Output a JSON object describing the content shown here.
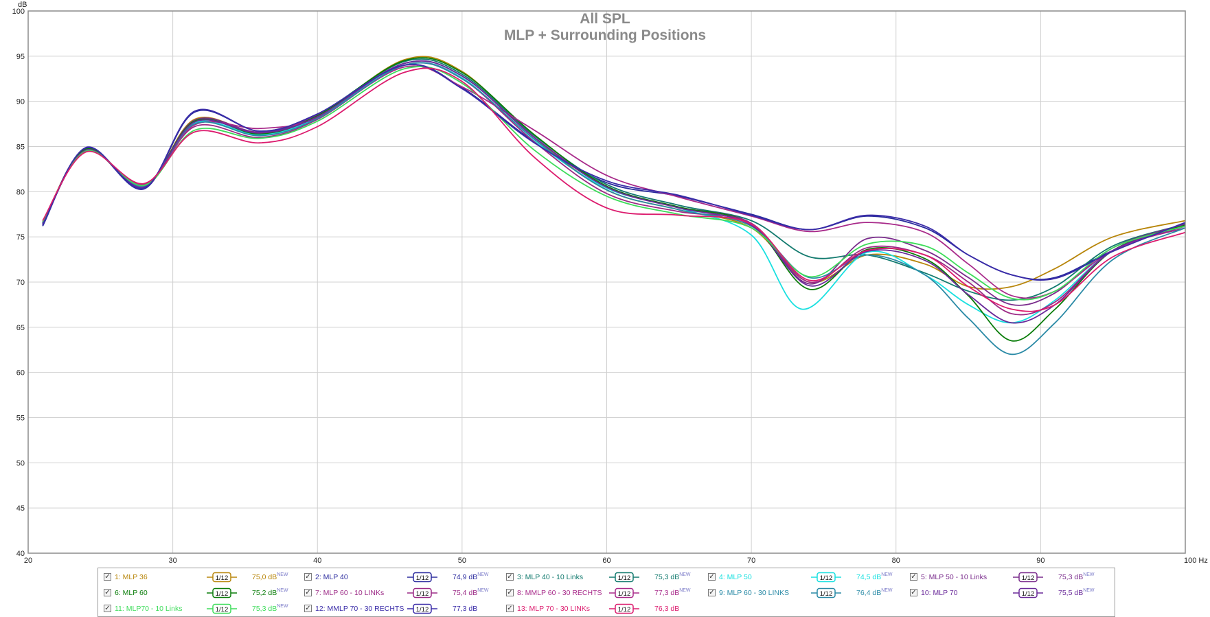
{
  "titles": {
    "line1": "All SPL",
    "line2": "MLP + Surrounding Positions"
  },
  "chart_data": {
    "type": "line",
    "title": "All SPL",
    "subtitle": "MLP + Surrounding Positions",
    "ylabel": "dB",
    "xlabel": "Hz",
    "xlim": [
      20,
      100
    ],
    "ylim": [
      40,
      100
    ],
    "xticks": [
      "20",
      "30",
      "40",
      "50",
      "60",
      "70",
      "80",
      "90",
      "100 Hz"
    ],
    "yticks": [
      "100",
      "95",
      "90",
      "85",
      "80",
      "75",
      "70",
      "65",
      "60",
      "55",
      "50",
      "45",
      "40"
    ],
    "grid": true,
    "legend_position": "bottom",
    "series": [
      {
        "name": "1: MLP 36",
        "color": "#b8860b",
        "level": "75,0 dB",
        "x": [
          21,
          24,
          28,
          31.5,
          36,
          40,
          46,
          50,
          55,
          60,
          65,
          70,
          74,
          78,
          82,
          85,
          88,
          91,
          95,
          100
        ],
        "y": [
          76.5,
          84.8,
          80.5,
          88.0,
          86.5,
          88.3,
          94.6,
          93.3,
          86.0,
          80.2,
          78.0,
          76.0,
          70.0,
          73.0,
          72.0,
          69.5,
          69.5,
          71.5,
          75.0,
          76.8
        ]
      },
      {
        "name": "2: MLP 40",
        "color": "#2b2b9e",
        "level": "74,9 dB",
        "x": [
          21,
          24,
          28,
          31.5,
          36,
          40,
          46,
          50,
          55,
          60,
          65,
          70,
          74,
          78,
          82,
          85,
          88,
          91,
          95,
          100
        ],
        "y": [
          76.2,
          84.8,
          80.3,
          88.8,
          86.7,
          88.6,
          94.0,
          91.5,
          85.5,
          81.0,
          79.5,
          77.5,
          75.8,
          77.3,
          76.0,
          73.0,
          70.8,
          70.5,
          73.5,
          76.5
        ]
      },
      {
        "name": "3: MLP 40 - 10 Links",
        "color": "#127a6e",
        "level": "75,3 dB",
        "x": [
          21,
          24,
          28,
          31.5,
          36,
          40,
          46,
          50,
          55,
          60,
          65,
          70,
          74,
          78,
          82,
          85,
          88,
          91,
          95,
          100
        ],
        "y": [
          76.5,
          84.7,
          80.6,
          87.8,
          86.5,
          88.5,
          94.4,
          93.0,
          86.2,
          80.8,
          78.5,
          76.8,
          72.8,
          73.0,
          71.0,
          69.0,
          68.0,
          69.5,
          74.0,
          76.4
        ]
      },
      {
        "name": "4: MLP 50",
        "color": "#19e0e0",
        "level": "74,5 dB",
        "x": [
          21,
          24,
          28,
          31.5,
          36,
          40,
          46,
          50,
          55,
          60,
          65,
          70,
          73.5,
          78,
          82,
          85,
          88,
          91,
          95,
          100
        ],
        "y": [
          76.6,
          84.6,
          80.7,
          87.6,
          86.3,
          88.2,
          94.0,
          92.6,
          85.6,
          80.4,
          78.2,
          75.2,
          67.0,
          73.3,
          70.8,
          67.5,
          65.5,
          68.0,
          73.5,
          76.2
        ]
      },
      {
        "name": "5: MLP 50 - 10 Links",
        "color": "#7a2c8c",
        "level": "75,3 dB",
        "x": [
          21,
          24,
          28,
          31.5,
          36,
          40,
          46,
          50,
          55,
          60,
          65,
          70,
          74,
          78,
          82,
          85,
          88,
          91,
          95,
          100
        ],
        "y": [
          76.4,
          84.7,
          80.5,
          87.9,
          86.6,
          88.5,
          94.2,
          92.8,
          86.0,
          80.6,
          78.3,
          76.5,
          69.8,
          74.8,
          73.5,
          70.5,
          67.5,
          68.8,
          73.8,
          76.4
        ]
      },
      {
        "name": "6: MLP 60",
        "color": "#0a7d0a",
        "level": "75,2 dB",
        "x": [
          21,
          24,
          28,
          31.5,
          36,
          40,
          46,
          50,
          55,
          60,
          65,
          70,
          74,
          78,
          82,
          85,
          88,
          91,
          95,
          100
        ],
        "y": [
          76.5,
          84.7,
          80.5,
          87.8,
          86.4,
          88.4,
          94.5,
          93.2,
          86.3,
          80.6,
          78.3,
          76.4,
          69.2,
          73.6,
          72.6,
          68.5,
          63.5,
          67.0,
          73.5,
          76.3
        ]
      },
      {
        "name": "7: MLP 60 - 10 LINKs",
        "color": "#9c2a86",
        "level": "75,4 dB",
        "x": [
          21,
          24,
          28,
          31.5,
          36,
          40,
          46,
          50,
          55,
          60,
          65,
          70,
          74,
          78,
          82,
          85,
          88,
          91,
          95,
          100
        ],
        "y": [
          76.5,
          84.6,
          80.6,
          87.2,
          86.0,
          88.0,
          94.0,
          92.5,
          85.5,
          79.8,
          77.8,
          76.5,
          70.0,
          73.8,
          73.0,
          70.0,
          66.5,
          67.8,
          73.5,
          76.0
        ]
      },
      {
        "name": "8: MMLP 60 - 30 RECHTS",
        "color": "#a82a8a",
        "level": "77,3 dB",
        "x": [
          21,
          24,
          28,
          31.5,
          36,
          40,
          46,
          50,
          55,
          60,
          65,
          70,
          74,
          78,
          82,
          85,
          88,
          91,
          95,
          100
        ],
        "y": [
          76.6,
          84.5,
          80.8,
          87.4,
          87.0,
          88.2,
          93.8,
          91.6,
          86.8,
          81.8,
          79.4,
          77.3,
          75.6,
          76.6,
          75.5,
          72.0,
          68.5,
          69.0,
          73.5,
          76.2
        ]
      },
      {
        "name": "9: MLP 60 - 30 LINKS",
        "color": "#2a8aa6",
        "level": "76,4 dB",
        "x": [
          21,
          24,
          28,
          31.5,
          36,
          40,
          46,
          50,
          55,
          60,
          65,
          70,
          74,
          78,
          82,
          85,
          88,
          91,
          95,
          100
        ],
        "y": [
          76.5,
          84.6,
          80.6,
          87.5,
          86.2,
          88.1,
          94.0,
          92.5,
          85.8,
          80.2,
          78.0,
          76.2,
          70.5,
          73.0,
          70.8,
          66.0,
          62.0,
          65.5,
          72.5,
          76.0
        ]
      },
      {
        "name": "10: MLP 70",
        "color": "#6a2a9a",
        "level": "75,5 dB",
        "x": [
          21,
          24,
          28,
          31.5,
          36,
          40,
          46,
          50,
          55,
          60,
          65,
          70,
          74,
          78,
          82,
          85,
          88,
          91,
          95,
          100
        ],
        "y": [
          76.4,
          84.6,
          80.5,
          87.7,
          86.5,
          88.3,
          94.2,
          92.8,
          86.0,
          80.5,
          78.2,
          76.3,
          69.6,
          73.4,
          72.4,
          68.6,
          65.5,
          67.5,
          73.5,
          76.2
        ]
      },
      {
        "name": "11: MLP70 - 10 Links",
        "color": "#3ddc5a",
        "level": "75,3 dB",
        "x": [
          21,
          24,
          28,
          31.5,
          36,
          40,
          46,
          50,
          55,
          60,
          65,
          70,
          74,
          78,
          82,
          85,
          88,
          91,
          95,
          100
        ],
        "y": [
          76.7,
          84.5,
          80.7,
          86.8,
          85.9,
          87.8,
          93.6,
          92.0,
          84.6,
          79.5,
          77.5,
          76.0,
          70.6,
          74.2,
          74.0,
          71.0,
          68.2,
          69.0,
          73.8,
          76.2
        ]
      },
      {
        "name": "12: MMLP 70 - 30 RECHTS",
        "color": "#3a2ca8",
        "level": "77,3 dB",
        "x": [
          21,
          24,
          28,
          31.5,
          36,
          40,
          46,
          50,
          55,
          60,
          65,
          70,
          74,
          78,
          82,
          85,
          88,
          91,
          95,
          100
        ],
        "y": [
          76.3,
          84.9,
          80.4,
          88.9,
          86.7,
          88.6,
          94.0,
          91.4,
          85.4,
          81.2,
          79.6,
          77.4,
          75.8,
          77.4,
          76.2,
          73.0,
          70.8,
          70.4,
          73.4,
          76.6
        ]
      },
      {
        "name": "13: MLP 70 - 30 LINKs",
        "color": "#dc1c6e",
        "level": "76,3 dB",
        "x": [
          21,
          24,
          28,
          31.5,
          36,
          40,
          46,
          50,
          55,
          60,
          65,
          70,
          74,
          78,
          82,
          85,
          88,
          91,
          95,
          100
        ],
        "y": [
          76.8,
          84.4,
          80.9,
          86.6,
          85.4,
          87.2,
          93.2,
          92.2,
          83.8,
          78.2,
          77.4,
          76.4,
          70.2,
          73.5,
          73.0,
          69.5,
          67.0,
          67.5,
          72.8,
          75.5
        ]
      }
    ]
  },
  "legend": {
    "smoothing_label": "1/12",
    "new_badge": "NEW",
    "items": [
      {
        "name": "1: MLP 36",
        "value": "75,0 dB",
        "color": "#b8860b"
      },
      {
        "name": "2: MLP 40",
        "value": "74,9 dB",
        "color": "#2b2b9e"
      },
      {
        "name": "3: MLP 40 - 10 Links",
        "value": "75,3 dB",
        "color": "#127a6e"
      },
      {
        "name": "4: MLP 50",
        "value": "74,5 dB",
        "color": "#19e0e0"
      },
      {
        "name": "5: MLP 50 - 10 Links",
        "value": "75,3 dB",
        "color": "#7a2c8c"
      },
      {
        "name": "6: MLP 60",
        "value": "75,2 dB",
        "color": "#0a7d0a"
      },
      {
        "name": "7: MLP 60 - 10 LINKs",
        "value": "75,4 dB",
        "color": "#9c2a86"
      },
      {
        "name": "8: MMLP 60 - 30 RECHTS",
        "value": "77,3 dB",
        "color": "#a82a8a"
      },
      {
        "name": "9: MLP 60 - 30 LINKS",
        "value": "76,4 dB",
        "color": "#2a8aa6"
      },
      {
        "name": "10: MLP 70",
        "value": "75,5 dB",
        "color": "#6a2a9a"
      },
      {
        "name": "11: MLP70 - 10 Links",
        "value": "75,3 dB",
        "color": "#3ddc5a"
      },
      {
        "name": "12: MMLP 70 - 30 RECHTS",
        "value": "77,3 dB",
        "color": "#3a2ca8"
      },
      {
        "name": "13: MLP 70 - 30 LINKs",
        "value": "76,3 dB",
        "color": "#dc1c6e"
      }
    ]
  }
}
